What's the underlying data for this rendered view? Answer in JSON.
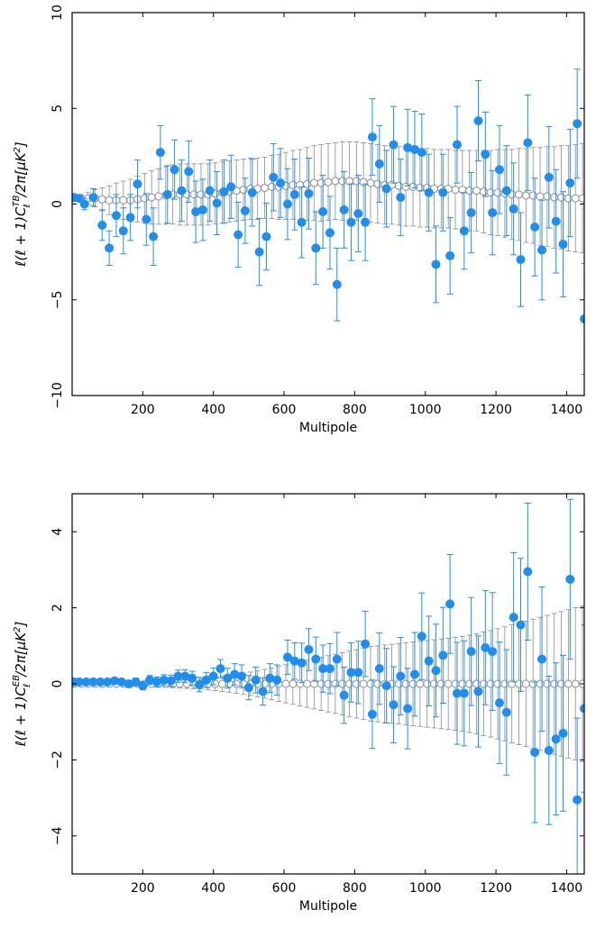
{
  "chart_data": [
    {
      "type": "scatter",
      "xlabel": "Multipole",
      "ylabel": "ℓ(ℓ+1)C_ℓ^TB/2π[μK²]",
      "ylabel_parts": {
        "pre": "ℓ(ℓ + 1)",
        "C": "C",
        "sup": "TB",
        "sub": "ℓ",
        "post": "/2π[μK",
        "sq": "2",
        "close": "]"
      },
      "xlim": [
        0,
        1450
      ],
      "ylim": [
        -10,
        10
      ],
      "xticks": [
        "200",
        "400",
        "600",
        "800",
        "1000",
        "1200",
        "1400"
      ],
      "xtick_values": [
        200,
        400,
        600,
        800,
        1000,
        1200,
        1400
      ],
      "yticks": [
        "−10",
        "−5",
        "0",
        "5",
        "10"
      ],
      "ytick_values": [
        -10,
        -5,
        0,
        5,
        10
      ],
      "colors": {
        "data": "#1f8ef1",
        "model": "#8a8a8a"
      },
      "series": [
        {
          "x": [
            5,
            25,
            45,
            65,
            85,
            105,
            125,
            145,
            165,
            185,
            205,
            225,
            245,
            265,
            285,
            305,
            325,
            345,
            365,
            385,
            405,
            425,
            445,
            465,
            485,
            505,
            525,
            545,
            565,
            585,
            605,
            625,
            645,
            665,
            685,
            705,
            725,
            745,
            765,
            785,
            805,
            825,
            845,
            865,
            885,
            905,
            925,
            945,
            965,
            985,
            1005,
            1025,
            1045,
            1065,
            1085,
            1105,
            1125,
            1145,
            1165,
            1185,
            1205,
            1225,
            1245,
            1265,
            1285,
            1305,
            1325,
            1345,
            1365,
            1385,
            1405,
            1425,
            1445
          ],
          "y": [
            0.3,
            0.3,
            0.3,
            0.3,
            0.25,
            0.2,
            0.2,
            0.2,
            0.2,
            0.25,
            0.3,
            0.35,
            0.4,
            0.45,
            0.5,
            0.5,
            0.5,
            0.5,
            0.5,
            0.5,
            0.55,
            0.6,
            0.65,
            0.7,
            0.75,
            0.8,
            0.8,
            0.85,
            0.9,
            0.9,
            0.95,
            1.0,
            1.0,
            1.05,
            1.1,
            1.1,
            1.15,
            1.2,
            1.2,
            1.2,
            1.2,
            1.15,
            1.1,
            1.05,
            1.0,
            1.0,
            0.95,
            0.9,
            0.9,
            0.85,
            0.85,
            0.8,
            0.8,
            0.8,
            0.75,
            0.75,
            0.7,
            0.7,
            0.65,
            0.6,
            0.6,
            0.55,
            0.5,
            0.5,
            0.45,
            0.45,
            0.4,
            0.4,
            0.35,
            0.35,
            0.3,
            0.3,
            0.3
          ],
          "err": [
            0.1,
            0.2,
            0.3,
            0.45,
            0.6,
            0.75,
            0.9,
            1.0,
            1.1,
            1.2,
            1.3,
            1.4,
            1.45,
            1.5,
            1.55,
            1.6,
            1.6,
            1.6,
            1.6,
            1.6,
            1.6,
            1.6,
            1.6,
            1.6,
            1.6,
            1.6,
            1.6,
            1.6,
            1.65,
            1.7,
            1.75,
            1.8,
            1.85,
            1.9,
            1.95,
            2.0,
            2.0,
            2.0,
            2.05,
            2.05,
            2.05,
            2.05,
            2.05,
            2.05,
            2.05,
            2.05,
            2.05,
            2.05,
            2.05,
            2.05,
            2.05,
            2.05,
            2.05,
            2.05,
            2.05,
            2.05,
            2.1,
            2.1,
            2.15,
            2.2,
            2.25,
            2.3,
            2.35,
            2.4,
            2.45,
            2.5,
            2.55,
            2.6,
            2.65,
            2.7,
            2.75,
            2.8,
            2.85
          ]
        },
        {
          "x": [
            5,
            20,
            35,
            60,
            85,
            105,
            125,
            145,
            165,
            185,
            210,
            230,
            250,
            270,
            290,
            310,
            330,
            350,
            370,
            390,
            410,
            430,
            450,
            470,
            490,
            510,
            530,
            550,
            570,
            590,
            610,
            630,
            650,
            670,
            690,
            710,
            730,
            750,
            770,
            790,
            810,
            830,
            850,
            870,
            890,
            910,
            930,
            950,
            970,
            990,
            1010,
            1030,
            1050,
            1070,
            1090,
            1110,
            1130,
            1150,
            1170,
            1190,
            1210,
            1230,
            1250,
            1270,
            1290,
            1310,
            1330,
            1350,
            1370,
            1390,
            1410,
            1430,
            1450
          ],
          "y": [
            0.35,
            0.3,
            0.0,
            0.35,
            -1.1,
            -2.3,
            -0.6,
            -1.4,
            -0.7,
            1.05,
            -0.8,
            -1.7,
            2.7,
            0.5,
            1.8,
            0.7,
            1.7,
            -0.4,
            -0.3,
            0.7,
            0.05,
            0.65,
            0.9,
            -1.6,
            -0.35,
            0.6,
            -2.5,
            -1.7,
            1.4,
            1.1,
            0.0,
            0.5,
            -0.95,
            0.55,
            -2.3,
            -0.4,
            -1.5,
            -4.2,
            -0.3,
            -0.95,
            -0.5,
            -0.95,
            3.5,
            2.1,
            0.8,
            3.1,
            0.35,
            2.95,
            2.85,
            2.7,
            0.6,
            -3.15,
            0.6,
            -2.7,
            3.1,
            -1.4,
            -0.45,
            4.35,
            2.6,
            -0.45,
            1.8,
            0.7,
            -0.25,
            -2.9,
            3.2,
            -1.2,
            -2.4,
            1.4,
            -0.9,
            -2.1,
            1.1,
            4.2,
            -6.0
          ],
          "err": [
            0.1,
            0.15,
            0.3,
            0.45,
            0.8,
            0.9,
            1.1,
            1.2,
            1.2,
            1.25,
            1.35,
            1.5,
            1.4,
            1.5,
            1.55,
            1.6,
            1.6,
            1.6,
            1.6,
            1.6,
            1.65,
            1.65,
            1.65,
            1.7,
            1.7,
            1.75,
            1.75,
            1.75,
            1.75,
            1.8,
            1.85,
            1.85,
            1.85,
            1.85,
            1.9,
            1.9,
            1.9,
            1.9,
            2.0,
            2.0,
            2.0,
            2.0,
            2.0,
            2.0,
            2.0,
            2.0,
            2.0,
            2.0,
            2.0,
            2.0,
            2.0,
            2.0,
            2.0,
            2.0,
            2.0,
            2.0,
            2.1,
            2.1,
            2.2,
            2.2,
            2.3,
            2.35,
            2.4,
            2.45,
            2.5,
            2.55,
            2.6,
            2.65,
            2.7,
            2.75,
            2.8,
            2.85,
            2.9
          ]
        }
      ]
    },
    {
      "type": "scatter",
      "xlabel": "Multipole",
      "ylabel": "ℓ(ℓ+1)C_ℓ^EB/2π[μK²]",
      "ylabel_parts": {
        "pre": "ℓ(ℓ + 1)",
        "C": "C",
        "sup": "EB",
        "sub": "ℓ",
        "post": "/2π[μK",
        "sq": "2",
        "close": "]"
      },
      "xlim": [
        0,
        1450
      ],
      "ylim": [
        -5,
        5
      ],
      "xticks": [
        "200",
        "400",
        "600",
        "800",
        "1000",
        "1200",
        "1400"
      ],
      "xtick_values": [
        200,
        400,
        600,
        800,
        1000,
        1200,
        1400
      ],
      "yticks": [
        "−4",
        "−2",
        "0",
        "2",
        "4"
      ],
      "ytick_values": [
        -4,
        -2,
        0,
        2,
        4
      ],
      "colors": {
        "data": "#1f8ef1",
        "model": "#8a8a8a"
      },
      "series": [
        {
          "x": [
            5,
            25,
            45,
            65,
            85,
            105,
            125,
            145,
            165,
            185,
            205,
            225,
            245,
            265,
            285,
            305,
            325,
            345,
            365,
            385,
            405,
            425,
            445,
            465,
            485,
            505,
            525,
            545,
            565,
            585,
            605,
            625,
            645,
            665,
            685,
            705,
            725,
            745,
            765,
            785,
            805,
            825,
            845,
            865,
            885,
            905,
            925,
            945,
            965,
            985,
            1005,
            1025,
            1045,
            1065,
            1085,
            1105,
            1125,
            1145,
            1165,
            1185,
            1205,
            1225,
            1245,
            1265,
            1285,
            1305,
            1325,
            1345,
            1365,
            1385,
            1405,
            1425,
            1445
          ],
          "y": [
            0.0,
            0.0,
            0.0,
            0.0,
            0.0,
            0.0,
            0.0,
            0.0,
            0.0,
            0.0,
            0.0,
            0.0,
            0.0,
            0.0,
            0.0,
            0.0,
            0.0,
            0.0,
            0.0,
            0.0,
            0.0,
            0.0,
            0.0,
            0.0,
            0.0,
            0.0,
            0.0,
            0.0,
            0.0,
            0.0,
            0.0,
            0.0,
            0.0,
            0.0,
            0.0,
            0.0,
            0.0,
            0.0,
            0.0,
            0.0,
            0.0,
            0.0,
            0.0,
            0.0,
            0.0,
            0.0,
            0.0,
            0.0,
            0.0,
            0.0,
            0.0,
            0.0,
            0.0,
            0.0,
            0.0,
            0.0,
            0.0,
            0.0,
            0.0,
            0.0,
            0.0,
            0.0,
            0.0,
            0.0,
            0.0,
            0.0,
            0.0,
            0.0,
            0.0,
            0.0,
            0.0,
            0.0,
            0.0
          ],
          "err": [
            0.02,
            0.02,
            0.02,
            0.02,
            0.03,
            0.03,
            0.04,
            0.04,
            0.05,
            0.05,
            0.06,
            0.07,
            0.08,
            0.09,
            0.1,
            0.11,
            0.12,
            0.13,
            0.14,
            0.16,
            0.18,
            0.2,
            0.22,
            0.25,
            0.28,
            0.31,
            0.34,
            0.38,
            0.42,
            0.46,
            0.5,
            0.54,
            0.58,
            0.62,
            0.66,
            0.7,
            0.74,
            0.78,
            0.82,
            0.86,
            0.9,
            0.94,
            0.98,
            1.0,
            1.02,
            1.04,
            1.06,
            1.08,
            1.1,
            1.12,
            1.14,
            1.16,
            1.18,
            1.2,
            1.22,
            1.25,
            1.28,
            1.32,
            1.36,
            1.4,
            1.45,
            1.5,
            1.55,
            1.6,
            1.65,
            1.7,
            1.75,
            1.8,
            1.85,
            1.9,
            1.95,
            2.0,
            2.05
          ]
        },
        {
          "x": [
            5,
            20,
            40,
            60,
            80,
            100,
            120,
            140,
            160,
            180,
            200,
            220,
            240,
            260,
            280,
            300,
            320,
            340,
            360,
            380,
            400,
            420,
            440,
            460,
            480,
            500,
            520,
            540,
            560,
            580,
            610,
            630,
            650,
            670,
            690,
            710,
            730,
            750,
            770,
            790,
            810,
            830,
            850,
            870,
            890,
            910,
            930,
            950,
            970,
            990,
            1010,
            1030,
            1050,
            1070,
            1090,
            1110,
            1130,
            1150,
            1170,
            1190,
            1210,
            1230,
            1250,
            1270,
            1290,
            1310,
            1330,
            1350,
            1370,
            1390,
            1410,
            1430,
            1450
          ],
          "y": [
            0.05,
            0.05,
            0.05,
            0.05,
            0.05,
            0.05,
            0.08,
            0.05,
            0.0,
            0.05,
            -0.05,
            0.1,
            0.05,
            0.1,
            0.08,
            0.2,
            0.2,
            0.15,
            -0.02,
            0.1,
            0.2,
            0.4,
            0.15,
            0.25,
            0.2,
            -0.1,
            0.1,
            -0.2,
            0.15,
            0.1,
            0.7,
            0.6,
            0.55,
            0.9,
            0.65,
            0.4,
            0.4,
            0.65,
            -0.3,
            0.3,
            0.3,
            1.05,
            -0.8,
            0.4,
            -0.05,
            -0.55,
            0.2,
            -0.65,
            0.25,
            1.25,
            0.6,
            0.35,
            0.75,
            2.1,
            -0.25,
            -0.25,
            0.85,
            -0.2,
            0.95,
            0.85,
            -0.5,
            -0.75,
            1.75,
            1.55,
            2.95,
            -1.8,
            0.65,
            -1.75,
            -1.45,
            -1.3,
            2.75,
            -3.05,
            -0.65
          ],
          "err": [
            0.03,
            0.03,
            0.03,
            0.04,
            0.05,
            0.06,
            0.07,
            0.08,
            0.09,
            0.1,
            0.11,
            0.12,
            0.13,
            0.14,
            0.15,
            0.16,
            0.17,
            0.18,
            0.19,
            0.2,
            0.22,
            0.24,
            0.26,
            0.28,
            0.3,
            0.32,
            0.34,
            0.36,
            0.38,
            0.4,
            0.45,
            0.48,
            0.52,
            0.55,
            0.58,
            0.62,
            0.66,
            0.7,
            0.74,
            0.78,
            0.82,
            0.86,
            0.9,
            0.94,
            0.98,
            1.0,
            1.02,
            1.06,
            1.1,
            1.14,
            1.18,
            1.22,
            1.26,
            1.3,
            1.34,
            1.38,
            1.42,
            1.46,
            1.5,
            1.55,
            1.6,
            1.65,
            1.7,
            1.75,
            1.8,
            1.85,
            1.9,
            1.95,
            2.0,
            2.05,
            2.1,
            2.15,
            2.2
          ]
        }
      ]
    }
  ]
}
